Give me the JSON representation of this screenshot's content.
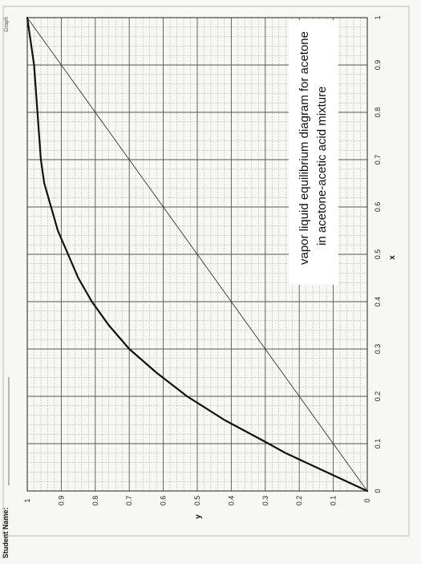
{
  "header": {
    "student_label": "Student Name:",
    "corner_text": "Graph"
  },
  "chart_data": {
    "type": "line",
    "title": "",
    "xlabel": "x",
    "ylabel": "y",
    "xlim": [
      0,
      1
    ],
    "ylim": [
      0,
      1
    ],
    "x_ticks": [
      0,
      0.1,
      0.2,
      0.3,
      0.4,
      0.5,
      0.6,
      0.7,
      0.8,
      0.9,
      1
    ],
    "x_tick_labels": [
      "0",
      "0.1",
      "0.2",
      "0.3",
      "0.4",
      "0.5",
      "0.6",
      "0.7",
      "0.8",
      "0.9",
      "1"
    ],
    "y_ticks": [
      0,
      0.1,
      0.2,
      0.3,
      0.4,
      0.5,
      0.6,
      0.7,
      0.8,
      0.9,
      1
    ],
    "y_tick_labels": [
      "0",
      "0.1",
      "0.2",
      "0.3",
      "0.4",
      "0.5",
      "0.6",
      "0.7",
      "0.8",
      "0.9",
      "1"
    ],
    "grid": true,
    "minor_grid_step": 0.02,
    "orientation": "rotated-90-ccw",
    "annotation": [
      "vapor liquid equilibrium diagram for acetone",
      "in acetone-acetic acid mixture"
    ],
    "series": [
      {
        "role": "equilibrium-curve",
        "color": "#111111",
        "x": [
          0,
          0.02,
          0.05,
          0.08,
          0.1,
          0.15,
          0.2,
          0.25,
          0.3,
          0.35,
          0.4,
          0.45,
          0.5,
          0.55,
          0.6,
          0.65,
          0.7,
          0.75,
          0.8,
          0.85,
          0.9,
          0.95,
          1
        ],
        "y": [
          0,
          0.06,
          0.15,
          0.24,
          0.29,
          0.42,
          0.53,
          0.62,
          0.7,
          0.76,
          0.81,
          0.85,
          0.88,
          0.91,
          0.93,
          0.95,
          0.96,
          0.965,
          0.97,
          0.975,
          0.98,
          0.99,
          1
        ]
      },
      {
        "role": "diagonal",
        "color": "#333333",
        "x": [
          0,
          1
        ],
        "y": [
          0,
          1
        ]
      }
    ]
  }
}
